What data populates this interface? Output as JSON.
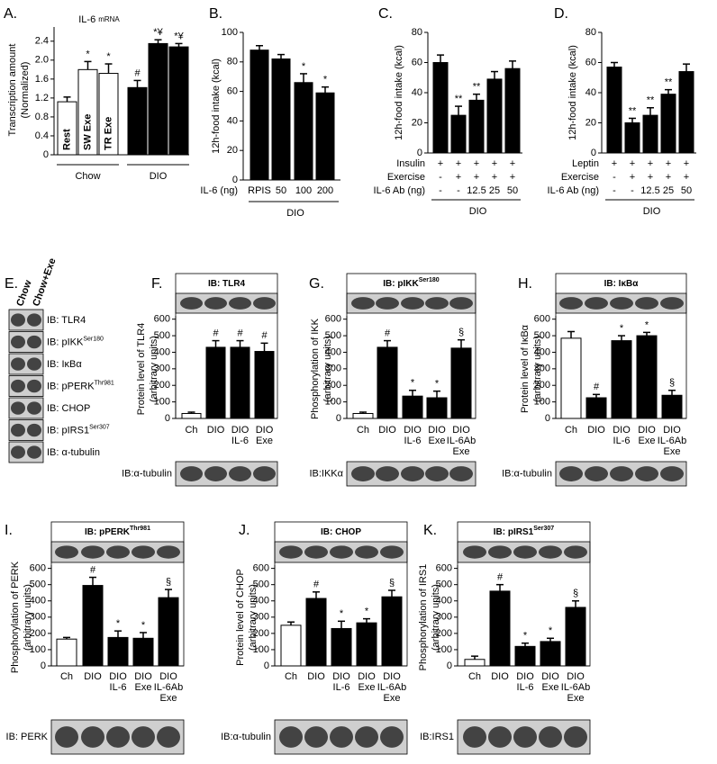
{
  "chart_data": [
    {
      "type": "bar",
      "panel": "A.",
      "title": {
        "text": "IL-6",
        "small": "mRNA"
      },
      "ylabel": [
        "Transcription amount",
        "(Normalized)"
      ],
      "categories": [
        "Rest",
        "SW Exe",
        "TR Exe",
        "Rest",
        "SW Exe",
        "TR Exe"
      ],
      "group_labels": [
        "Chow",
        "DIO"
      ],
      "values": [
        1.12,
        1.8,
        1.72,
        1.42,
        2.35,
        2.28
      ],
      "errors": [
        0.1,
        0.17,
        0.2,
        0.15,
        0.08,
        0.07
      ],
      "annotations": [
        null,
        "*",
        "*",
        "#",
        "*¥",
        "*¥"
      ],
      "colors": [
        "#ffffff",
        "#ffffff",
        "#ffffff",
        "#000000",
        "#000000",
        "#000000"
      ],
      "ylim": [
        0,
        2.7
      ],
      "yticks": [
        0,
        0.4,
        0.8,
        1.2,
        1.6,
        {
          "value": 2,
          "label": "2.0"
        },
        2.4
      ]
    },
    {
      "type": "bar",
      "panel": "B.",
      "ylabel": [
        "12h-food intake (kcal)"
      ],
      "xprefix": "IL-6 (ng)",
      "categories": [
        "RPIS",
        "50",
        "100",
        "200"
      ],
      "group_label": "DIO",
      "values": [
        88,
        82,
        66,
        59
      ],
      "errors": [
        3,
        3,
        6,
        4
      ],
      "annotations": [
        null,
        null,
        "*",
        "*"
      ],
      "colors": [
        "#000000",
        "#000000",
        "#000000",
        "#000000"
      ],
      "ylim": [
        0,
        100
      ],
      "yticks": [
        0,
        20,
        40,
        60,
        80,
        100
      ]
    },
    {
      "type": "bar",
      "panel": "C.",
      "ylabel": [
        "12h-food intake (kcal)"
      ],
      "rows": [
        {
          "label": "Insulin",
          "values": [
            "+",
            "+",
            "+",
            "+",
            "+"
          ]
        },
        {
          "label": "Exercise",
          "values": [
            "-",
            "+",
            "+",
            "+",
            "+"
          ]
        },
        {
          "label": "IL-6 Ab (ng)",
          "values": [
            "-",
            "-",
            "12.5",
            "25",
            "50"
          ]
        }
      ],
      "group_label": "DIO",
      "values": [
        60,
        25,
        35,
        49,
        56
      ],
      "errors": [
        5,
        6,
        4,
        5,
        5
      ],
      "annotations": [
        null,
        "**",
        "**",
        null,
        null
      ],
      "colors": [
        "#000000",
        "#000000",
        "#000000",
        "#000000",
        "#000000"
      ],
      "ylim": [
        0,
        80
      ],
      "yticks": [
        0,
        20,
        40,
        60,
        80
      ]
    },
    {
      "type": "bar",
      "panel": "D.",
      "ylabel": [
        "12h-food intake (kcal)"
      ],
      "rows": [
        {
          "label": "Leptin",
          "values": [
            "+",
            "+",
            "+",
            "+",
            "+"
          ]
        },
        {
          "label": "Exercise",
          "values": [
            "-",
            "+",
            "+",
            "+",
            "+"
          ]
        },
        {
          "label": "IL-6 Ab (ng)",
          "values": [
            "-",
            "-",
            "12.5",
            "25",
            "50"
          ]
        }
      ],
      "group_label": "DIO",
      "values": [
        57,
        20,
        25,
        39,
        54
      ],
      "errors": [
        3,
        3,
        5,
        3,
        5
      ],
      "annotations": [
        null,
        "**",
        "**",
        "**",
        null
      ],
      "colors": [
        "#000000",
        "#000000",
        "#000000",
        "#000000",
        "#000000"
      ],
      "ylim": [
        0,
        80
      ],
      "yticks": [
        0,
        20,
        40,
        60,
        80
      ]
    },
    {
      "type": "bar",
      "panel": "F.",
      "title": {
        "text": "IB: TLR4"
      },
      "ylabel": [
        "Protein level of TLR4",
        "(arbitrary units)"
      ],
      "loading_label": "IB:α-tubulin",
      "categories": [
        [
          "Ch"
        ],
        [
          "DIO"
        ],
        [
          "DIO",
          "IL-6"
        ],
        [
          "DIO",
          "Exe"
        ]
      ],
      "values": [
        30,
        430,
        430,
        405
      ],
      "errors": [
        8,
        40,
        40,
        50
      ],
      "annotations": [
        null,
        "#",
        "#",
        "#"
      ],
      "colors": [
        "#ffffff",
        "#000000",
        "#000000",
        "#000000"
      ],
      "ylim": [
        0,
        620
      ],
      "yticks": [
        0,
        100,
        200,
        300,
        400,
        500,
        600
      ]
    },
    {
      "type": "bar",
      "panel": "G.",
      "title": {
        "text": "IB: pIKK",
        "sup": "Ser180"
      },
      "ylabel": [
        "Phosphorylation of IKK",
        "(arbitrary units)"
      ],
      "loading_label": "IB:IKKα",
      "categories": [
        [
          "Ch"
        ],
        [
          "DIO"
        ],
        [
          "DIO",
          "IL-6"
        ],
        [
          "DIO",
          "Exe"
        ],
        [
          "DIO",
          "IL-6Ab",
          "Exe"
        ]
      ],
      "values": [
        30,
        430,
        135,
        125,
        425
      ],
      "errors": [
        8,
        40,
        35,
        40,
        50
      ],
      "annotations": [
        null,
        "#",
        "*",
        "*",
        "§"
      ],
      "colors": [
        "#ffffff",
        "#000000",
        "#000000",
        "#000000",
        "#000000"
      ],
      "ylim": [
        0,
        620
      ],
      "yticks": [
        0,
        100,
        200,
        300,
        400,
        500,
        600
      ]
    },
    {
      "type": "bar",
      "panel": "H.",
      "title": {
        "text": "IB: IκBα"
      },
      "ylabel": [
        "Protein level of IκBα",
        "(arbitrary units)"
      ],
      "loading_label": "IB:α-tubulin",
      "categories": [
        [
          "Ch"
        ],
        [
          "DIO"
        ],
        [
          "DIO",
          "IL-6"
        ],
        [
          "DIO",
          "Exe"
        ],
        [
          "DIO",
          "IL-6Ab",
          "Exe"
        ]
      ],
      "values": [
        485,
        125,
        470,
        500,
        140
      ],
      "errors": [
        40,
        20,
        30,
        20,
        30
      ],
      "annotations": [
        null,
        "#",
        "*",
        "*",
        "§"
      ],
      "colors": [
        "#ffffff",
        "#000000",
        "#000000",
        "#000000",
        "#000000"
      ],
      "ylim": [
        0,
        620
      ],
      "yticks": [
        0,
        100,
        200,
        300,
        400,
        500,
        600
      ]
    },
    {
      "type": "bar",
      "panel": "I.",
      "title": {
        "text": "IB: pPERK",
        "sup": "Thr981"
      },
      "ylabel": [
        "Phosphorylation of PERK",
        "(arbitrary units)"
      ],
      "loading_label": "IB: PERK",
      "categories": [
        [
          "Ch"
        ],
        [
          "DIO"
        ],
        [
          "DIO",
          "IL-6"
        ],
        [
          "DIO",
          "Exe"
        ],
        [
          "DIO",
          "IL-6Ab",
          "Exe"
        ]
      ],
      "values": [
        165,
        495,
        175,
        170,
        420
      ],
      "errors": [
        10,
        50,
        40,
        35,
        50
      ],
      "annotations": [
        null,
        "#",
        "*",
        "*",
        "§"
      ],
      "colors": [
        "#ffffff",
        "#000000",
        "#000000",
        "#000000",
        "#000000"
      ],
      "ylim": [
        0,
        620
      ],
      "yticks": [
        0,
        100,
        200,
        300,
        400,
        500,
        600
      ]
    },
    {
      "type": "bar",
      "panel": "J.",
      "title": {
        "text": "IB: CHOP"
      },
      "ylabel": [
        "Protein level of CHOP",
        "(arbitrary units)"
      ],
      "loading_label": "IB:α-tubulin",
      "categories": [
        [
          "Ch"
        ],
        [
          "DIO"
        ],
        [
          "DIO",
          "IL-6"
        ],
        [
          "DIO",
          "Exe"
        ],
        [
          "DIO",
          "IL-6Ab",
          "Exe"
        ]
      ],
      "values": [
        250,
        415,
        230,
        265,
        425
      ],
      "errors": [
        20,
        40,
        45,
        25,
        40
      ],
      "annotations": [
        null,
        "#",
        "*",
        "*",
        "§"
      ],
      "colors": [
        "#ffffff",
        "#000000",
        "#000000",
        "#000000",
        "#000000"
      ],
      "ylim": [
        0,
        620
      ],
      "yticks": [
        0,
        100,
        200,
        300,
        400,
        500,
        600
      ]
    },
    {
      "type": "bar",
      "panel": "K.",
      "title": {
        "text": "IB: pIRS1",
        "sup": "Ser307"
      },
      "ylabel": [
        "Phosphorylation of IRS1",
        "(arbitrary units)"
      ],
      "loading_label": "IB:IRS1",
      "categories": [
        [
          "Ch"
        ],
        [
          "DIO"
        ],
        [
          "DIO",
          "IL-6"
        ],
        [
          "DIO",
          "Exe"
        ],
        [
          "DIO",
          "IL-6Ab",
          "Exe"
        ]
      ],
      "values": [
        40,
        460,
        120,
        150,
        360
      ],
      "errors": [
        20,
        40,
        20,
        20,
        40
      ],
      "annotations": [
        null,
        "#",
        "*",
        "*",
        "§"
      ],
      "colors": [
        "#ffffff",
        "#000000",
        "#000000",
        "#000000",
        "#000000"
      ],
      "ylim": [
        0,
        620
      ],
      "yticks": [
        0,
        100,
        200,
        300,
        400,
        500,
        600
      ]
    }
  ],
  "blot_e": {
    "panel": "E.",
    "columns": [
      "Chow",
      "Chow+Exe"
    ],
    "rows": [
      {
        "text": "IB: TLR4"
      },
      {
        "text": "IB: pIKK",
        "sup": "Ser180"
      },
      {
        "text": "IB: IκBα"
      },
      {
        "text": "IB: pPERK",
        "sup": "Thr981"
      },
      {
        "text": "IB: CHOP"
      },
      {
        "text": "IB: pIRS1",
        "sup": "Ser307"
      },
      {
        "text": "IB: α-tubulin"
      }
    ]
  }
}
